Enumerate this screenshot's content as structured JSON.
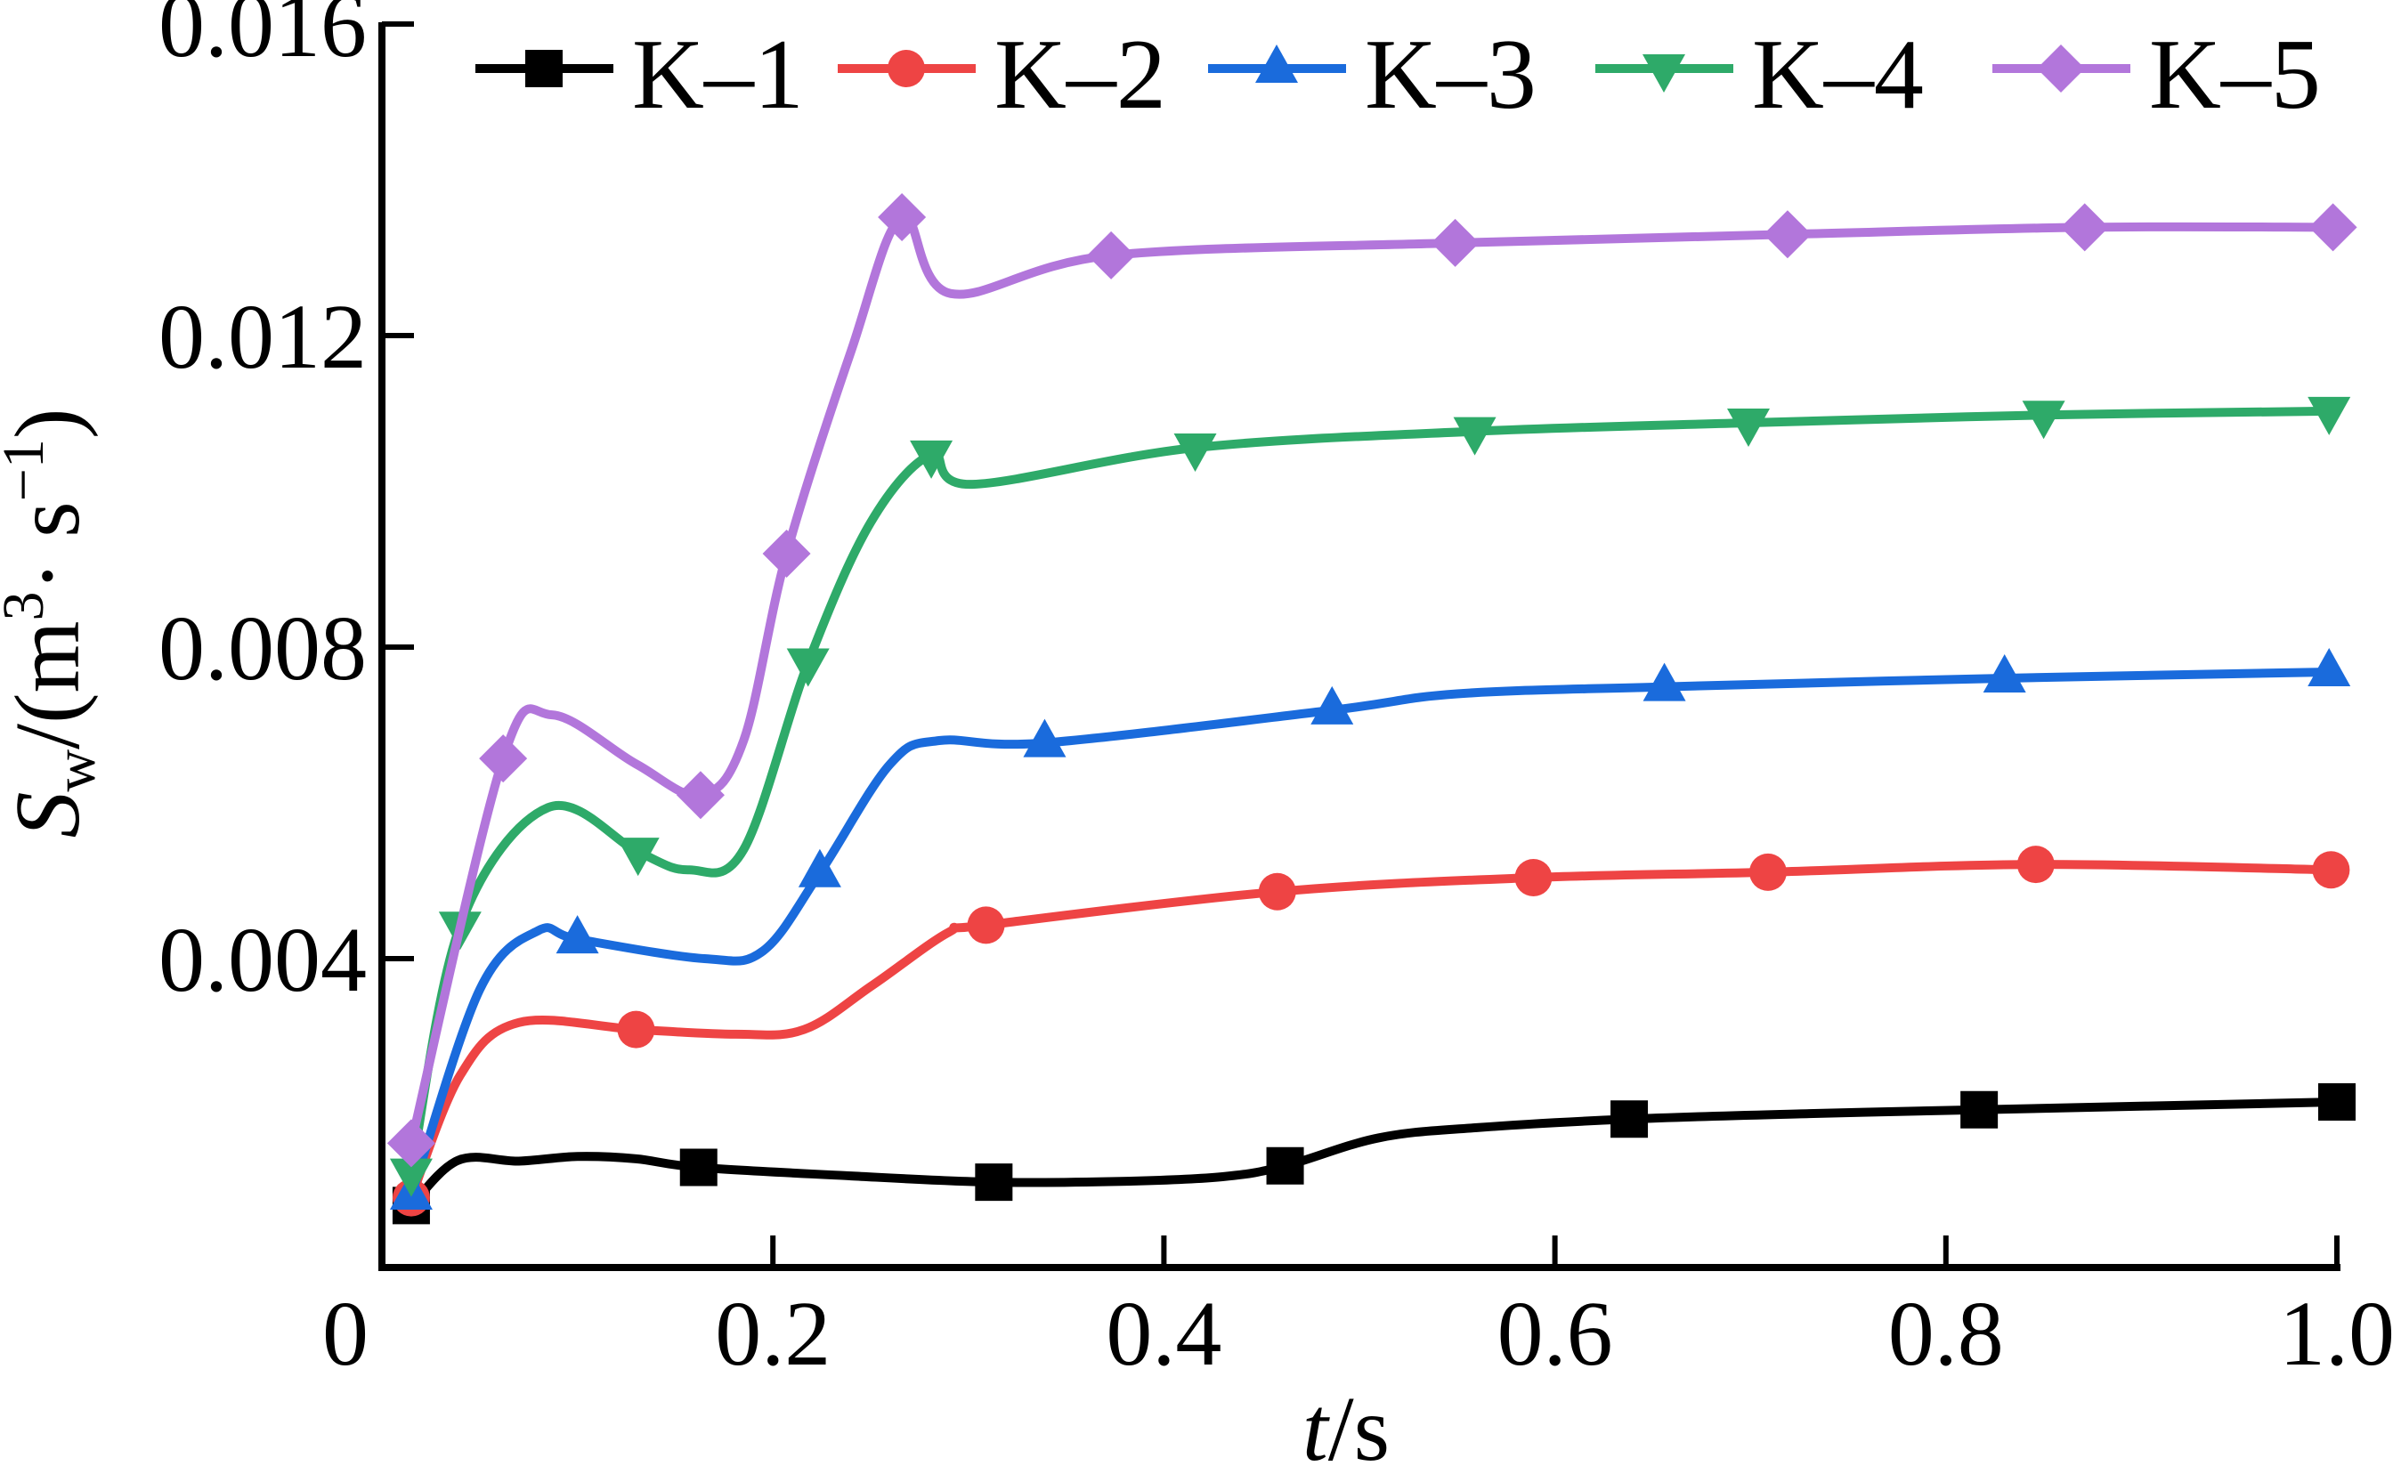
{
  "chart_data": {
    "type": "line",
    "title": "",
    "xlabel": "t/s",
    "xlabel_parts": {
      "italic": "t",
      "rest": "/s"
    },
    "ylabel": "Sw/(m3· s−1)",
    "ylabel_parts": {
      "main": "S",
      "sub": "w",
      "mid": "/(m",
      "sup1": "3",
      "dot": "· s",
      "sup2": "−1",
      "end": ")"
    },
    "xlim": [
      0,
      1.0
    ],
    "ylim": [
      0,
      0.016
    ],
    "xticks": [
      0,
      0.2,
      0.4,
      0.6,
      0.8,
      1.0
    ],
    "xtick_labels": [
      "0",
      "0.2",
      "0.4",
      "0.6",
      "0.8",
      "1.0"
    ],
    "yticks": [
      0.004,
      0.008,
      0.012,
      0.016
    ],
    "ytick_labels": [
      "0.004",
      "0.008",
      "0.012",
      "0.016"
    ],
    "grid": false,
    "legend_position": "top",
    "series": [
      {
        "name": "K–1",
        "color": "#000000",
        "marker": "square",
        "points": [
          [
            0.015,
            0.00083
          ],
          [
            0.162,
            0.00132
          ],
          [
            0.313,
            0.00113
          ],
          [
            0.462,
            0.00134
          ],
          [
            0.638,
            0.00194
          ],
          [
            0.817,
            0.00206
          ],
          [
            1.0,
            0.00216
          ]
        ],
        "curve": [
          [
            0.015,
            0.00083
          ],
          [
            0.039,
            0.00141
          ],
          [
            0.07,
            0.0014
          ],
          [
            0.1,
            0.00146
          ],
          [
            0.13,
            0.00143
          ],
          [
            0.162,
            0.00132
          ],
          [
            0.24,
            0.00121
          ],
          [
            0.313,
            0.00113
          ],
          [
            0.378,
            0.00114
          ],
          [
            0.43,
            0.0012
          ],
          [
            0.462,
            0.00134
          ],
          [
            0.51,
            0.0017
          ],
          [
            0.56,
            0.00183
          ],
          [
            0.638,
            0.00194
          ],
          [
            0.73,
            0.00201
          ],
          [
            0.817,
            0.00206
          ],
          [
            1.0,
            0.00216
          ]
        ]
      },
      {
        "name": "K–2",
        "color": "#ee4444",
        "marker": "circle",
        "points": [
          [
            0.015,
            0.00093
          ],
          [
            0.13,
            0.00309
          ],
          [
            0.309,
            0.00443
          ],
          [
            0.458,
            0.00486
          ],
          [
            0.589,
            0.00504
          ],
          [
            0.709,
            0.00511
          ],
          [
            0.846,
            0.00521
          ],
          [
            0.997,
            0.00514
          ]
        ],
        "curve": [
          [
            0.015,
            0.00093
          ],
          [
            0.04,
            0.0025
          ],
          [
            0.07,
            0.00318
          ],
          [
            0.13,
            0.00309
          ],
          [
            0.181,
            0.00303
          ],
          [
            0.216,
            0.00309
          ],
          [
            0.251,
            0.00366
          ],
          [
            0.29,
            0.00434
          ],
          [
            0.309,
            0.00443
          ],
          [
            0.458,
            0.00486
          ],
          [
            0.589,
            0.00504
          ],
          [
            0.709,
            0.00511
          ],
          [
            0.846,
            0.00521
          ],
          [
            0.997,
            0.00514
          ]
        ]
      },
      {
        "name": "K–3",
        "color": "#1a6bdc",
        "marker": "triangle-up",
        "points": [
          [
            0.015,
            0.00096
          ],
          [
            0.1,
            0.00425
          ],
          [
            0.224,
            0.0051
          ],
          [
            0.339,
            0.00677
          ],
          [
            0.486,
            0.00719
          ],
          [
            0.656,
            0.00749
          ],
          [
            0.83,
            0.0076
          ],
          [
            0.996,
            0.00768
          ]
        ],
        "curve": [
          [
            0.015,
            0.00096
          ],
          [
            0.05,
            0.0036
          ],
          [
            0.08,
            0.00436
          ],
          [
            0.1,
            0.00425
          ],
          [
            0.165,
            0.004
          ],
          [
            0.195,
            0.0041
          ],
          [
            0.224,
            0.0051
          ],
          [
            0.26,
            0.0065
          ],
          [
            0.285,
            0.0068
          ],
          [
            0.339,
            0.00677
          ],
          [
            0.486,
            0.00719
          ],
          [
            0.55,
            0.0074
          ],
          [
            0.656,
            0.00749
          ],
          [
            0.83,
            0.0076
          ],
          [
            0.996,
            0.00768
          ]
        ]
      },
      {
        "name": "K–4",
        "color": "#2eaa69",
        "marker": "triangle-down",
        "points": [
          [
            0.015,
            0.00125
          ],
          [
            0.04,
            0.00442
          ],
          [
            0.131,
            0.00537
          ],
          [
            0.218,
            0.0078
          ],
          [
            0.281,
            0.01047
          ],
          [
            0.416,
            0.01056
          ],
          [
            0.559,
            0.01077
          ],
          [
            0.699,
            0.01088
          ],
          [
            0.85,
            0.01098
          ],
          [
            0.996,
            0.01103
          ]
        ],
        "curve": [
          [
            0.015,
            0.00125
          ],
          [
            0.04,
            0.00442
          ],
          [
            0.085,
            0.00594
          ],
          [
            0.131,
            0.00537
          ],
          [
            0.157,
            0.00514
          ],
          [
            0.185,
            0.0054
          ],
          [
            0.218,
            0.0078
          ],
          [
            0.25,
            0.0096
          ],
          [
            0.281,
            0.01047
          ],
          [
            0.302,
            0.01009
          ],
          [
            0.416,
            0.01056
          ],
          [
            0.559,
            0.01077
          ],
          [
            0.699,
            0.01088
          ],
          [
            0.85,
            0.01098
          ],
          [
            0.996,
            0.01103
          ]
        ]
      },
      {
        "name": "K–5",
        "color": "#b276db",
        "marker": "diamond",
        "points": [
          [
            0.015,
            0.00163
          ],
          [
            0.062,
            0.00657
          ],
          [
            0.163,
            0.0061
          ],
          [
            0.207,
            0.0092
          ],
          [
            0.266,
            0.01352
          ],
          [
            0.373,
            0.01303
          ],
          [
            0.549,
            0.01319
          ],
          [
            0.719,
            0.0133
          ],
          [
            0.871,
            0.01339
          ],
          [
            0.998,
            0.01339
          ]
        ],
        "curve": [
          [
            0.015,
            0.00163
          ],
          [
            0.062,
            0.00657
          ],
          [
            0.087,
            0.00713
          ],
          [
            0.13,
            0.0065
          ],
          [
            0.163,
            0.0061
          ],
          [
            0.185,
            0.0068
          ],
          [
            0.207,
            0.0092
          ],
          [
            0.24,
            0.0118
          ],
          [
            0.266,
            0.01352
          ],
          [
            0.291,
            0.01254
          ],
          [
            0.373,
            0.01303
          ],
          [
            0.549,
            0.01319
          ],
          [
            0.719,
            0.0133
          ],
          [
            0.871,
            0.01339
          ],
          [
            0.998,
            0.01339
          ]
        ]
      }
    ]
  }
}
